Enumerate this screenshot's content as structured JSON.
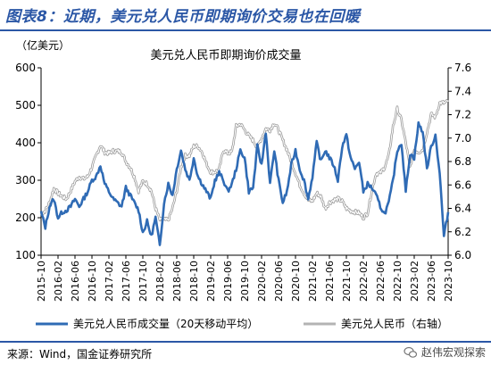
{
  "figure": {
    "title": "图表8：近期，美元兑人民币即期询价交易也在回暖",
    "source": "来源：Wind，国金证券研究所",
    "watermark": "赵伟宏观探索"
  },
  "chart_data": {
    "type": "line",
    "title": "美元兑人民币即期询价成交量",
    "left_unit": "（亿美元）",
    "left_axis": {
      "min": 100,
      "max": 600,
      "ticks": [
        "600",
        "500",
        "400",
        "300",
        "200",
        "100"
      ]
    },
    "right_axis": {
      "min": 6.0,
      "max": 7.6,
      "ticks": [
        "7.6",
        "7.4",
        "7.2",
        "7.0",
        "6.8",
        "6.6",
        "6.4",
        "6.2",
        "6.0"
      ]
    },
    "x_ticks": [
      "2015-10",
      "2016-02",
      "2016-06",
      "2016-10",
      "2017-02",
      "2017-06",
      "2017-10",
      "2018-02",
      "2018-06",
      "2018-10",
      "2019-02",
      "2019-06",
      "2019-10",
      "2020-02",
      "2020-06",
      "2020-10",
      "2021-02",
      "2021-06",
      "2021-10",
      "2022-02",
      "2022-06",
      "2022-10",
      "2023-02",
      "2023-06",
      "2023-10"
    ],
    "series": [
      {
        "name": "美元兑人民币成交量（20天移动平均）",
        "axis": "left",
        "color": "#2f6bb5",
        "points": [
          [
            "2015-10",
            215
          ],
          [
            "2015-11",
            175
          ],
          [
            "2015-12",
            230
          ],
          [
            "2016-01",
            250
          ],
          [
            "2016-02",
            200
          ],
          [
            "2016-03",
            215
          ],
          [
            "2016-04",
            220
          ],
          [
            "2016-05",
            230
          ],
          [
            "2016-06",
            250
          ],
          [
            "2016-07",
            230
          ],
          [
            "2016-08",
            250
          ],
          [
            "2016-09",
            270
          ],
          [
            "2016-10",
            300
          ],
          [
            "2016-11",
            310
          ],
          [
            "2016-12",
            340
          ],
          [
            "2017-01",
            290
          ],
          [
            "2017-02",
            270
          ],
          [
            "2017-03",
            250
          ],
          [
            "2017-04",
            240
          ],
          [
            "2017-05",
            230
          ],
          [
            "2017-06",
            280
          ],
          [
            "2017-07",
            260
          ],
          [
            "2017-08",
            240
          ],
          [
            "2017-09",
            220
          ],
          [
            "2017-10",
            160
          ],
          [
            "2017-11",
            190
          ],
          [
            "2017-12",
            150
          ],
          [
            "2018-01",
            200
          ],
          [
            "2018-02",
            125
          ],
          [
            "2018-03",
            240
          ],
          [
            "2018-04",
            290
          ],
          [
            "2018-05",
            260
          ],
          [
            "2018-06",
            330
          ],
          [
            "2018-07",
            380
          ],
          [
            "2018-08",
            330
          ],
          [
            "2018-09",
            300
          ],
          [
            "2018-10",
            360
          ],
          [
            "2018-11",
            310
          ],
          [
            "2018-12",
            290
          ],
          [
            "2019-01",
            270
          ],
          [
            "2019-02",
            250
          ],
          [
            "2019-03",
            300
          ],
          [
            "2019-04",
            320
          ],
          [
            "2019-05",
            300
          ],
          [
            "2019-06",
            270
          ],
          [
            "2019-07",
            290
          ],
          [
            "2019-08",
            330
          ],
          [
            "2019-09",
            380
          ],
          [
            "2019-10",
            360
          ],
          [
            "2019-11",
            270
          ],
          [
            "2019-12",
            280
          ],
          [
            "2020-01",
            390
          ],
          [
            "2020-02",
            340
          ],
          [
            "2020-03",
            430
          ],
          [
            "2020-04",
            290
          ],
          [
            "2020-05",
            380
          ],
          [
            "2020-06",
            300
          ],
          [
            "2020-07",
            240
          ],
          [
            "2020-08",
            270
          ],
          [
            "2020-09",
            340
          ],
          [
            "2020-10",
            380
          ],
          [
            "2020-11",
            330
          ],
          [
            "2020-12",
            300
          ],
          [
            "2021-01",
            250
          ],
          [
            "2021-02",
            310
          ],
          [
            "2021-03",
            400
          ],
          [
            "2021-04",
            350
          ],
          [
            "2021-05",
            380
          ],
          [
            "2021-06",
            360
          ],
          [
            "2021-07",
            340
          ],
          [
            "2021-08",
            300
          ],
          [
            "2021-09",
            390
          ],
          [
            "2021-10",
            420
          ],
          [
            "2021-11",
            360
          ],
          [
            "2021-12",
            330
          ],
          [
            "2022-01",
            350
          ],
          [
            "2022-02",
            270
          ],
          [
            "2022-03",
            290
          ],
          [
            "2022-04",
            280
          ],
          [
            "2022-05",
            260
          ],
          [
            "2022-06",
            230
          ],
          [
            "2022-07",
            210
          ],
          [
            "2022-08",
            240
          ],
          [
            "2022-09",
            300
          ],
          [
            "2022-10",
            380
          ],
          [
            "2022-11",
            400
          ],
          [
            "2022-12",
            270
          ],
          [
            "2023-01",
            370
          ],
          [
            "2023-02",
            360
          ],
          [
            "2023-03",
            450
          ],
          [
            "2023-04",
            430
          ],
          [
            "2023-05",
            330
          ],
          [
            "2023-06",
            390
          ],
          [
            "2023-07",
            420
          ],
          [
            "2023-08",
            320
          ],
          [
            "2023-09",
            150
          ],
          [
            "2023-10",
            215
          ]
        ]
      },
      {
        "name": "美元兑人民币（右轴）",
        "axis": "right",
        "color": "#b3b3b3",
        "points": [
          [
            "2015-10",
            6.35
          ],
          [
            "2015-11",
            6.38
          ],
          [
            "2015-12",
            6.45
          ],
          [
            "2016-01",
            6.57
          ],
          [
            "2016-02",
            6.53
          ],
          [
            "2016-03",
            6.5
          ],
          [
            "2016-04",
            6.48
          ],
          [
            "2016-05",
            6.55
          ],
          [
            "2016-06",
            6.63
          ],
          [
            "2016-07",
            6.67
          ],
          [
            "2016-08",
            6.65
          ],
          [
            "2016-09",
            6.67
          ],
          [
            "2016-10",
            6.75
          ],
          [
            "2016-11",
            6.85
          ],
          [
            "2016-12",
            6.94
          ],
          [
            "2017-01",
            6.88
          ],
          [
            "2017-02",
            6.87
          ],
          [
            "2017-03",
            6.89
          ],
          [
            "2017-04",
            6.89
          ],
          [
            "2017-05",
            6.88
          ],
          [
            "2017-06",
            6.8
          ],
          [
            "2017-07",
            6.75
          ],
          [
            "2017-08",
            6.67
          ],
          [
            "2017-09",
            6.55
          ],
          [
            "2017-10",
            6.63
          ],
          [
            "2017-11",
            6.61
          ],
          [
            "2017-12",
            6.55
          ],
          [
            "2018-01",
            6.4
          ],
          [
            "2018-02",
            6.3
          ],
          [
            "2018-03",
            6.3
          ],
          [
            "2018-04",
            6.3
          ],
          [
            "2018-05",
            6.4
          ],
          [
            "2018-06",
            6.55
          ],
          [
            "2018-07",
            6.75
          ],
          [
            "2018-08",
            6.85
          ],
          [
            "2018-09",
            6.85
          ],
          [
            "2018-10",
            6.93
          ],
          [
            "2018-11",
            6.93
          ],
          [
            "2018-12",
            6.88
          ],
          [
            "2019-01",
            6.78
          ],
          [
            "2019-02",
            6.71
          ],
          [
            "2019-03",
            6.71
          ],
          [
            "2019-04",
            6.73
          ],
          [
            "2019-05",
            6.9
          ],
          [
            "2019-06",
            6.87
          ],
          [
            "2019-07",
            6.88
          ],
          [
            "2019-08",
            7.1
          ],
          [
            "2019-09",
            7.12
          ],
          [
            "2019-10",
            7.07
          ],
          [
            "2019-11",
            7.02
          ],
          [
            "2019-12",
            6.98
          ],
          [
            "2020-01",
            6.92
          ],
          [
            "2020-02",
            7.0
          ],
          [
            "2020-03",
            7.08
          ],
          [
            "2020-04",
            7.07
          ],
          [
            "2020-05",
            7.13
          ],
          [
            "2020-06",
            7.07
          ],
          [
            "2020-07",
            6.98
          ],
          [
            "2020-08",
            6.9
          ],
          [
            "2020-09",
            6.8
          ],
          [
            "2020-10",
            6.7
          ],
          [
            "2020-11",
            6.6
          ],
          [
            "2020-12",
            6.53
          ],
          [
            "2021-01",
            6.47
          ],
          [
            "2021-02",
            6.46
          ],
          [
            "2021-03",
            6.53
          ],
          [
            "2021-04",
            6.5
          ],
          [
            "2021-05",
            6.4
          ],
          [
            "2021-06",
            6.45
          ],
          [
            "2021-07",
            6.47
          ],
          [
            "2021-08",
            6.48
          ],
          [
            "2021-09",
            6.46
          ],
          [
            "2021-10",
            6.4
          ],
          [
            "2021-11",
            6.38
          ],
          [
            "2021-12",
            6.37
          ],
          [
            "2022-01",
            6.36
          ],
          [
            "2022-02",
            6.32
          ],
          [
            "2022-03",
            6.36
          ],
          [
            "2022-04",
            6.55
          ],
          [
            "2022-05",
            6.7
          ],
          [
            "2022-06",
            6.7
          ],
          [
            "2022-07",
            6.75
          ],
          [
            "2022-08",
            6.85
          ],
          [
            "2022-09",
            7.1
          ],
          [
            "2022-10",
            7.25
          ],
          [
            "2022-11",
            7.15
          ],
          [
            "2022-12",
            6.96
          ],
          [
            "2023-01",
            6.75
          ],
          [
            "2023-02",
            6.9
          ],
          [
            "2023-03",
            6.88
          ],
          [
            "2023-04",
            6.9
          ],
          [
            "2023-05",
            7.05
          ],
          [
            "2023-06",
            7.2
          ],
          [
            "2023-07",
            7.18
          ],
          [
            "2023-08",
            7.3
          ],
          [
            "2023-09",
            7.3
          ],
          [
            "2023-10",
            7.31
          ]
        ]
      }
    ],
    "legend": [
      "美元兑人民币成交量（20天移动平均）",
      "美元兑人民币（右轴）"
    ],
    "legend_position": "bottom",
    "grid": false
  }
}
